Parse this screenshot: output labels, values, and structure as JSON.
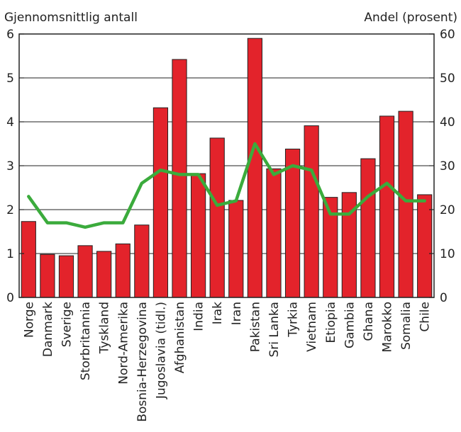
{
  "chart_data": {
    "type": "bar",
    "left_axis_title": "Gjennomsnittlig antall",
    "right_axis_title": "Andel (prosent)",
    "categories": [
      "Norge",
      "Danmark",
      "Sverige",
      "Storbritannia",
      "Tyskland",
      "Nord-Amerika",
      "Bosnia-Herzegovina",
      "Jugoslavia (tidl.)",
      "Afghanistan",
      "India",
      "Irak",
      "Iran",
      "Pakistan",
      "Sri Lanka",
      "Tyrkia",
      "Vietnam",
      "Etiopia",
      "Gambia",
      "Ghana",
      "Marokko",
      "Somalia",
      "Chile"
    ],
    "series": [
      {
        "kind": "bar",
        "axis": "left",
        "color": "#e3232b",
        "values": [
          1.73,
          0.98,
          0.95,
          1.18,
          1.05,
          1.22,
          1.65,
          4.32,
          5.42,
          2.82,
          3.63,
          2.21,
          5.9,
          2.93,
          3.38,
          3.91,
          2.28,
          2.39,
          3.16,
          4.13,
          4.24,
          2.34
        ]
      },
      {
        "kind": "line",
        "axis": "right",
        "color": "#3bab3c",
        "values": [
          23,
          17,
          17,
          16,
          17,
          17,
          26,
          29,
          28,
          28,
          21,
          22,
          35,
          28,
          30,
          29,
          19,
          19,
          23,
          26,
          22,
          22
        ]
      }
    ],
    "left_axis": {
      "min": 0,
      "max": 6,
      "ticks": [
        "0",
        "1",
        "2",
        "3",
        "4",
        "5",
        "6"
      ]
    },
    "right_axis": {
      "min": 0,
      "max": 60,
      "ticks": [
        "0",
        "10",
        "20",
        "30",
        "40",
        "50",
        "60"
      ]
    },
    "grid": true
  }
}
